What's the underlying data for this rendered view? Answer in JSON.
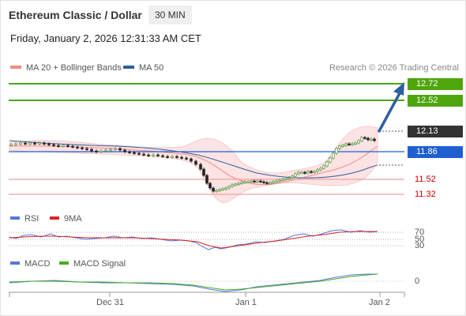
{
  "header": {
    "title": "Ethereum Classic / Dollar",
    "interval": "30 MIN",
    "datetime": "Friday, January 2, 2026 12:31:33 AM CET"
  },
  "legend": {
    "ma20_label": "MA 20 + Bollinger Bands",
    "ma50_label": "MA 50",
    "ma20_color": "#f48a8a",
    "ma50_color": "#2d5fa0"
  },
  "research": "Research © 2026 Trading Central",
  "price_levels": {
    "r2": "12.72",
    "r1": "12.52",
    "current": "12.13",
    "pivot": "11.86",
    "s1": "11.52",
    "s2": "11.32"
  },
  "colors": {
    "resistance": "#4fa60c",
    "current": "#333333",
    "pivot": "#1f5fd0",
    "support": "#cc0000",
    "arrow": "#2d5fa0"
  },
  "rsi": {
    "label": "RSI",
    "signal_label": "9MA",
    "levels": [
      "70",
      "50",
      "30"
    ],
    "rsi_color": "#5577dd",
    "signal_color": "#dd2222"
  },
  "macd": {
    "label": "MACD",
    "signal_label": "MACD Signal",
    "zero": "0",
    "macd_color": "#5577dd",
    "signal_color": "#44aa22"
  },
  "xaxis": {
    "labels": [
      "Dec 31",
      "Jan 1",
      "Jan 2"
    ]
  }
}
